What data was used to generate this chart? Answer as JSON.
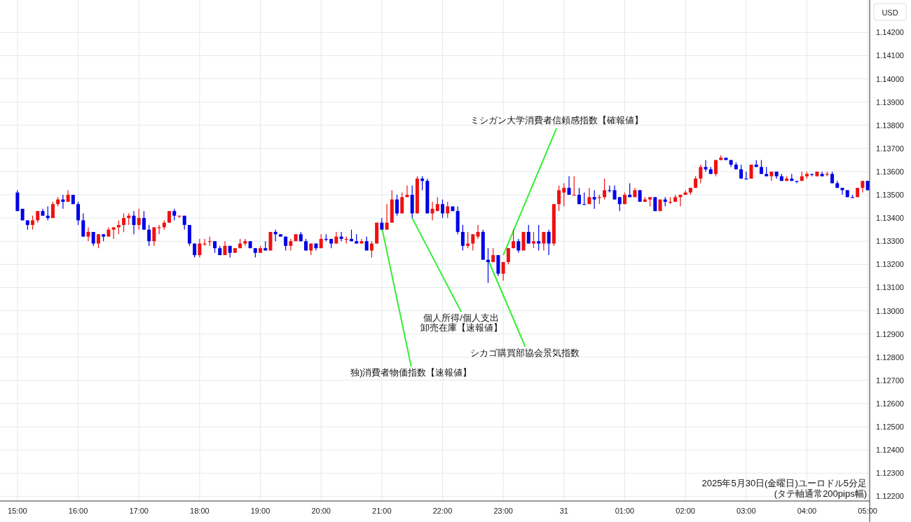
{
  "chart_data": {
    "type": "candlestick",
    "ylabel": "USD",
    "grid": true,
    "xlim": [
      "2025-05-30T14:58",
      "2025-05-31T05:02"
    ],
    "ylim": [
      1.1218,
      1.1434
    ],
    "xticks": [
      {
        "value": "2025-05-30T15:00",
        "label": "15:00"
      },
      {
        "value": "2025-05-30T16:00",
        "label": "16:00"
      },
      {
        "value": "2025-05-30T17:00",
        "label": "17:00"
      },
      {
        "value": "2025-05-30T18:00",
        "label": "18:00"
      },
      {
        "value": "2025-05-30T19:00",
        "label": "19:00"
      },
      {
        "value": "2025-05-30T20:00",
        "label": "20:00"
      },
      {
        "value": "2025-05-30T21:00",
        "label": "21:00"
      },
      {
        "value": "2025-05-30T22:00",
        "label": "22:00"
      },
      {
        "value": "2025-05-30T23:00",
        "label": "23:00"
      },
      {
        "value": "2025-05-31T00:00",
        "label": "31"
      },
      {
        "value": "2025-05-31T01:00",
        "label": "01:00"
      },
      {
        "value": "2025-05-31T02:00",
        "label": "02:00"
      },
      {
        "value": "2025-05-31T03:00",
        "label": "03:00"
      },
      {
        "value": "2025-05-31T04:00",
        "label": "04:00"
      },
      {
        "value": "2025-05-31T05:00",
        "label": "05:00"
      }
    ],
    "yticks": [
      {
        "value": 1.122,
        "label": "1.12200"
      },
      {
        "value": 1.123,
        "label": "1.12300"
      },
      {
        "value": 1.124,
        "label": "1.12400"
      },
      {
        "value": 1.125,
        "label": "1.12500"
      },
      {
        "value": 1.126,
        "label": "1.12600"
      },
      {
        "value": 1.127,
        "label": "1.12700"
      },
      {
        "value": 1.128,
        "label": "1.12800"
      },
      {
        "value": 1.129,
        "label": "1.12900"
      },
      {
        "value": 1.13,
        "label": "1.13000"
      },
      {
        "value": 1.131,
        "label": "1.13100"
      },
      {
        "value": 1.132,
        "label": "1.13200"
      },
      {
        "value": 1.133,
        "label": "1.13300"
      },
      {
        "value": 1.134,
        "label": "1.13400"
      },
      {
        "value": 1.135,
        "label": "1.13500"
      },
      {
        "value": 1.136,
        "label": "1.13600"
      },
      {
        "value": 1.137,
        "label": "1.13700"
      },
      {
        "value": 1.138,
        "label": "1.13800"
      },
      {
        "value": 1.139,
        "label": "1.13900"
      },
      {
        "value": 1.14,
        "label": "1.14000"
      },
      {
        "value": 1.141,
        "label": "1.14100"
      },
      {
        "value": 1.142,
        "label": "1.14200"
      }
    ],
    "annotations": [
      {
        "text": "独)消費者物価指数【速報値】",
        "x": "2025-05-30T21:00",
        "y": 1.1336
      },
      {
        "text": "個人所得/個人支出",
        "x": "2025-05-30T21:30",
        "y": 1.134
      },
      {
        "text": "卸売在庫【速報値】",
        "x": "2025-05-30T21:30",
        "y": 1.134
      },
      {
        "text": "シカゴ購買部協会景気指数",
        "x": "2025-05-30T22:45",
        "y": 1.1322
      },
      {
        "text": "ミシガン大学消費者信頼感指数【確報値】",
        "x": "2025-05-30T23:00",
        "y": 1.1324
      },
      "2025年5月30日(金曜日)ユーロドル5分足",
      "(タテ軸通常200pips幅)"
    ],
    "x": [
      "2025-05-30T15:00",
      "2025-05-30T15:05",
      "2025-05-30T15:10",
      "2025-05-30T15:15",
      "2025-05-30T15:20",
      "2025-05-30T15:25",
      "2025-05-30T15:30",
      "2025-05-30T15:35",
      "2025-05-30T15:40",
      "2025-05-30T15:45",
      "2025-05-30T15:50",
      "2025-05-30T15:55",
      "2025-05-30T16:00",
      "2025-05-30T16:05",
      "2025-05-30T16:10",
      "2025-05-30T16:15",
      "2025-05-30T16:20",
      "2025-05-30T16:25",
      "2025-05-30T16:30",
      "2025-05-30T16:35",
      "2025-05-30T16:40",
      "2025-05-30T16:45",
      "2025-05-30T16:50",
      "2025-05-30T16:55",
      "2025-05-30T17:00",
      "2025-05-30T17:05",
      "2025-05-30T17:10",
      "2025-05-30T17:15",
      "2025-05-30T17:20",
      "2025-05-30T17:25",
      "2025-05-30T17:30",
      "2025-05-30T17:35",
      "2025-05-30T17:40",
      "2025-05-30T17:45",
      "2025-05-30T17:50",
      "2025-05-30T17:55",
      "2025-05-30T18:00",
      "2025-05-30T18:05",
      "2025-05-30T18:10",
      "2025-05-30T18:15",
      "2025-05-30T18:20",
      "2025-05-30T18:25",
      "2025-05-30T18:30",
      "2025-05-30T18:35",
      "2025-05-30T18:40",
      "2025-05-30T18:45",
      "2025-05-30T18:50",
      "2025-05-30T18:55",
      "2025-05-30T19:00",
      "2025-05-30T19:05",
      "2025-05-30T19:10",
      "2025-05-30T19:15",
      "2025-05-30T19:20",
      "2025-05-30T19:25",
      "2025-05-30T19:30",
      "2025-05-30T19:35",
      "2025-05-30T19:40",
      "2025-05-30T19:45",
      "2025-05-30T19:50",
      "2025-05-30T19:55",
      "2025-05-30T20:00",
      "2025-05-30T20:05",
      "2025-05-30T20:10",
      "2025-05-30T20:15",
      "2025-05-30T20:20",
      "2025-05-30T20:25",
      "2025-05-30T20:30",
      "2025-05-30T20:35",
      "2025-05-30T20:40",
      "2025-05-30T20:45",
      "2025-05-30T20:50",
      "2025-05-30T20:55",
      "2025-05-30T21:00",
      "2025-05-30T21:05",
      "2025-05-30T21:10",
      "2025-05-30T21:15",
      "2025-05-30T21:20",
      "2025-05-30T21:25",
      "2025-05-30T21:30",
      "2025-05-30T21:35",
      "2025-05-30T21:40",
      "2025-05-30T21:45",
      "2025-05-30T21:50",
      "2025-05-30T21:55",
      "2025-05-30T22:00",
      "2025-05-30T22:05",
      "2025-05-30T22:10",
      "2025-05-30T22:15",
      "2025-05-30T22:20",
      "2025-05-30T22:25",
      "2025-05-30T22:30",
      "2025-05-30T22:35",
      "2025-05-30T22:40",
      "2025-05-30T22:45",
      "2025-05-30T22:50",
      "2025-05-30T22:55",
      "2025-05-30T23:00",
      "2025-05-30T23:05",
      "2025-05-30T23:10",
      "2025-05-30T23:15",
      "2025-05-30T23:20",
      "2025-05-30T23:25",
      "2025-05-30T23:30",
      "2025-05-30T23:35",
      "2025-05-30T23:40",
      "2025-05-30T23:45",
      "2025-05-30T23:50",
      "2025-05-30T23:55",
      "2025-05-31T00:00",
      "2025-05-31T00:05",
      "2025-05-31T00:10",
      "2025-05-31T00:15",
      "2025-05-31T00:20",
      "2025-05-31T00:25",
      "2025-05-31T00:30",
      "2025-05-31T00:35",
      "2025-05-31T00:40",
      "2025-05-31T00:45",
      "2025-05-31T00:50",
      "2025-05-31T00:55",
      "2025-05-31T01:00",
      "2025-05-31T01:05",
      "2025-05-31T01:10",
      "2025-05-31T01:15",
      "2025-05-31T01:20",
      "2025-05-31T01:25",
      "2025-05-31T01:30",
      "2025-05-31T01:35",
      "2025-05-31T01:40",
      "2025-05-31T01:45",
      "2025-05-31T01:50",
      "2025-05-31T01:55",
      "2025-05-31T02:00",
      "2025-05-31T02:05",
      "2025-05-31T02:10",
      "2025-05-31T02:15",
      "2025-05-31T02:20",
      "2025-05-31T02:25",
      "2025-05-31T02:30",
      "2025-05-31T02:35",
      "2025-05-31T02:40",
      "2025-05-31T02:45",
      "2025-05-31T02:50",
      "2025-05-31T02:55",
      "2025-05-31T03:00",
      "2025-05-31T03:05",
      "2025-05-31T03:10",
      "2025-05-31T03:15",
      "2025-05-31T03:20",
      "2025-05-31T03:25",
      "2025-05-31T03:30",
      "2025-05-31T03:35",
      "2025-05-31T03:40",
      "2025-05-31T03:45",
      "2025-05-31T03:50",
      "2025-05-31T03:55",
      "2025-05-31T04:00",
      "2025-05-31T04:05",
      "2025-05-31T04:10",
      "2025-05-31T04:15",
      "2025-05-31T04:20",
      "2025-05-31T04:25",
      "2025-05-31T04:30",
      "2025-05-31T04:35",
      "2025-05-31T04:40",
      "2025-05-31T04:45",
      "2025-05-31T04:50",
      "2025-05-31T04:55",
      "2025-05-31T05:00"
    ],
    "ohlc": [
      [
        1.1351,
        1.1352,
        1.1343,
        1.1343
      ],
      [
        1.1344,
        1.1344,
        1.1339,
        1.1339
      ],
      [
        1.1339,
        1.1339,
        1.1335,
        1.1337
      ],
      [
        1.1337,
        1.1341,
        1.1335,
        1.1339
      ],
      [
        1.1339,
        1.1343,
        1.1338,
        1.1343
      ],
      [
        1.1343,
        1.1344,
        1.1341,
        1.1341
      ],
      [
        1.1341,
        1.1345,
        1.1339,
        1.134
      ],
      [
        1.134,
        1.1347,
        1.134,
        1.1346
      ],
      [
        1.1346,
        1.1349,
        1.1345,
        1.1348
      ],
      [
        1.1348,
        1.135,
        1.1344,
        1.1347
      ],
      [
        1.1347,
        1.1352,
        1.1347,
        1.135
      ],
      [
        1.135,
        1.135,
        1.1346,
        1.1346
      ],
      [
        1.1346,
        1.1347,
        1.1337,
        1.1339
      ],
      [
        1.1339,
        1.1342,
        1.1332,
        1.1332
      ],
      [
        1.1332,
        1.1336,
        1.133,
        1.1334
      ],
      [
        1.1334,
        1.1334,
        1.1328,
        1.1329
      ],
      [
        1.1329,
        1.1333,
        1.1327,
        1.1333
      ],
      [
        1.1333,
        1.1333,
        1.133,
        1.1332
      ],
      [
        1.1332,
        1.1336,
        1.1332,
        1.1335
      ],
      [
        1.1335,
        1.1336,
        1.1331,
        1.1336
      ],
      [
        1.1336,
        1.1339,
        1.1333,
        1.1337
      ],
      [
        1.1337,
        1.1342,
        1.1334,
        1.134
      ],
      [
        1.134,
        1.1342,
        1.1337,
        1.1341
      ],
      [
        1.1341,
        1.1343,
        1.1333,
        1.1337
      ],
      [
        1.1337,
        1.1344,
        1.1335,
        1.134
      ],
      [
        1.134,
        1.1343,
        1.1335,
        1.1335
      ],
      [
        1.1335,
        1.1337,
        1.1328,
        1.133
      ],
      [
        1.133,
        1.1336,
        1.1328,
        1.1336
      ],
      [
        1.1336,
        1.1337,
        1.1333,
        1.1336
      ],
      [
        1.1336,
        1.1339,
        1.1335,
        1.1338
      ],
      [
        1.1338,
        1.1343,
        1.1338,
        1.1343
      ],
      [
        1.1343,
        1.1344,
        1.1339,
        1.1341
      ],
      [
        1.1341,
        1.1341,
        1.134,
        1.1341
      ],
      [
        1.1341,
        1.1341,
        1.1335,
        1.1337
      ],
      [
        1.1337,
        1.1337,
        1.1328,
        1.1329
      ],
      [
        1.1329,
        1.1329,
        1.1323,
        1.1324
      ],
      [
        1.1324,
        1.1331,
        1.1323,
        1.1329
      ],
      [
        1.1329,
        1.1331,
        1.1328,
        1.1329
      ],
      [
        1.133,
        1.1332,
        1.1328,
        1.133
      ],
      [
        1.133,
        1.133,
        1.1325,
        1.1327
      ],
      [
        1.1327,
        1.1328,
        1.1324,
        1.1324
      ],
      [
        1.1324,
        1.133,
        1.1324,
        1.1328
      ],
      [
        1.1328,
        1.1328,
        1.1323,
        1.1325
      ],
      [
        1.1325,
        1.1327,
        1.1325,
        1.1327
      ],
      [
        1.1327,
        1.1331,
        1.1327,
        1.1329
      ],
      [
        1.1329,
        1.1331,
        1.1328,
        1.133
      ],
      [
        1.133,
        1.133,
        1.1327,
        1.1327
      ],
      [
        1.1327,
        1.1327,
        1.1323,
        1.1325
      ],
      [
        1.1325,
        1.1328,
        1.1325,
        1.1327
      ],
      [
        1.1327,
        1.133,
        1.1326,
        1.1326
      ],
      [
        1.1326,
        1.1334,
        1.1326,
        1.1334
      ],
      [
        1.1334,
        1.1335,
        1.133,
        1.1333
      ],
      [
        1.1333,
        1.1333,
        1.1332,
        1.1332
      ],
      [
        1.1332,
        1.1332,
        1.1326,
        1.1328
      ],
      [
        1.1328,
        1.1331,
        1.1326,
        1.133
      ],
      [
        1.133,
        1.1333,
        1.133,
        1.1333
      ],
      [
        1.1333,
        1.1334,
        1.133,
        1.133
      ],
      [
        1.133,
        1.1331,
        1.1326,
        1.1326
      ],
      [
        1.1326,
        1.1329,
        1.1324,
        1.1329
      ],
      [
        1.1329,
        1.1329,
        1.1326,
        1.1327
      ],
      [
        1.1327,
        1.1333,
        1.1327,
        1.1331
      ],
      [
        1.1331,
        1.1333,
        1.133,
        1.1331
      ],
      [
        1.1331,
        1.1331,
        1.1327,
        1.1329
      ],
      [
        1.1329,
        1.1334,
        1.1329,
        1.1332
      ],
      [
        1.1332,
        1.1334,
        1.133,
        1.1331
      ],
      [
        1.1331,
        1.1332,
        1.1329,
        1.1331
      ],
      [
        1.1331,
        1.1335,
        1.133,
        1.133
      ],
      [
        1.133,
        1.1333,
        1.1329,
        1.1329
      ],
      [
        1.1329,
        1.1331,
        1.1329,
        1.133
      ],
      [
        1.133,
        1.1332,
        1.1326,
        1.1326
      ],
      [
        1.1326,
        1.133,
        1.1323,
        1.1329
      ],
      [
        1.1329,
        1.1338,
        1.1329,
        1.1338
      ],
      [
        1.1338,
        1.134,
        1.1335,
        1.1335
      ],
      [
        1.1335,
        1.1346,
        1.1335,
        1.1338
      ],
      [
        1.1338,
        1.1352,
        1.1338,
        1.1348
      ],
      [
        1.1348,
        1.135,
        1.1341,
        1.1342
      ],
      [
        1.1342,
        1.1351,
        1.1342,
        1.1349
      ],
      [
        1.1349,
        1.1354,
        1.1349,
        1.135
      ],
      [
        1.135,
        1.1354,
        1.134,
        1.1342
      ],
      [
        1.1342,
        1.1358,
        1.1342,
        1.1357
      ],
      [
        1.1357,
        1.1358,
        1.1352,
        1.1356
      ],
      [
        1.1356,
        1.1357,
        1.1342,
        1.1342
      ],
      [
        1.1342,
        1.1347,
        1.1339,
        1.1344
      ],
      [
        1.1343,
        1.1349,
        1.1343,
        1.1346
      ],
      [
        1.1346,
        1.1348,
        1.134,
        1.1342
      ],
      [
        1.1342,
        1.1347,
        1.134,
        1.1345
      ],
      [
        1.1345,
        1.1345,
        1.1343,
        1.1343
      ],
      [
        1.1343,
        1.1345,
        1.1333,
        1.1334
      ],
      [
        1.1334,
        1.1337,
        1.1326,
        1.1328
      ],
      [
        1.1328,
        1.1334,
        1.1327,
        1.1329
      ],
      [
        1.1329,
        1.1333,
        1.1326,
        1.1333
      ],
      [
        1.1332,
        1.1337,
        1.1331,
        1.1334
      ],
      [
        1.1334,
        1.1335,
        1.1322,
        1.1322
      ],
      [
        1.1322,
        1.1327,
        1.1312,
        1.1321
      ],
      [
        1.1321,
        1.1327,
        1.1321,
        1.1324
      ],
      [
        1.1324,
        1.1324,
        1.1315,
        1.1316
      ],
      [
        1.1316,
        1.1321,
        1.1313,
        1.1321
      ],
      [
        1.1321,
        1.1327,
        1.132,
        1.1327
      ],
      [
        1.1327,
        1.1335,
        1.1327,
        1.133
      ],
      [
        1.133,
        1.1331,
        1.1325,
        1.1326
      ],
      [
        1.1326,
        1.1334,
        1.1326,
        1.1334
      ],
      [
        1.1334,
        1.1337,
        1.1329,
        1.1329
      ],
      [
        1.1329,
        1.1334,
        1.1327,
        1.133
      ],
      [
        1.133,
        1.1337,
        1.1326,
        1.1329
      ],
      [
        1.1329,
        1.1334,
        1.1326,
        1.1334
      ],
      [
        1.1334,
        1.1335,
        1.1324,
        1.1329
      ],
      [
        1.1329,
        1.1346,
        1.1328,
        1.1346
      ],
      [
        1.1346,
        1.1354,
        1.1343,
        1.1352
      ],
      [
        1.1351,
        1.1355,
        1.1345,
        1.1353
      ],
      [
        1.1353,
        1.1358,
        1.135,
        1.135
      ],
      [
        1.135,
        1.1358,
        1.135,
        1.135
      ],
      [
        1.135,
        1.1353,
        1.1346,
        1.1346
      ],
      [
        1.1346,
        1.1351,
        1.1346,
        1.1346
      ],
      [
        1.1346,
        1.1353,
        1.1346,
        1.1349
      ],
      [
        1.1349,
        1.1352,
        1.1344,
        1.1348
      ],
      [
        1.1349,
        1.135,
        1.1346,
        1.1349
      ],
      [
        1.1349,
        1.1357,
        1.1348,
        1.1352
      ],
      [
        1.1352,
        1.1354,
        1.1351,
        1.1352
      ],
      [
        1.1352,
        1.1354,
        1.1348,
        1.1348
      ],
      [
        1.1349,
        1.1349,
        1.1343,
        1.1346
      ],
      [
        1.1346,
        1.1351,
        1.1346,
        1.135
      ],
      [
        1.135,
        1.1355,
        1.1349,
        1.1349
      ],
      [
        1.1349,
        1.1353,
        1.1349,
        1.1352
      ],
      [
        1.1352,
        1.1352,
        1.1347,
        1.1347
      ],
      [
        1.1347,
        1.1349,
        1.1347,
        1.1348
      ],
      [
        1.1348,
        1.1349,
        1.1345,
        1.1349
      ],
      [
        1.1349,
        1.1349,
        1.1343,
        1.1343
      ],
      [
        1.1343,
        1.1348,
        1.1343,
        1.1348
      ],
      [
        1.1348,
        1.1349,
        1.1345,
        1.1347
      ],
      [
        1.1347,
        1.1349,
        1.1346,
        1.1347
      ],
      [
        1.1347,
        1.135,
        1.1347,
        1.1349
      ],
      [
        1.1349,
        1.135,
        1.1345,
        1.135
      ],
      [
        1.135,
        1.1352,
        1.135,
        1.1351
      ],
      [
        1.1351,
        1.1353,
        1.135,
        1.1353
      ],
      [
        1.1353,
        1.1358,
        1.1353,
        1.1357
      ],
      [
        1.1357,
        1.1363,
        1.1355,
        1.1362
      ],
      [
        1.1362,
        1.1365,
        1.136,
        1.1361
      ],
      [
        1.1361,
        1.1362,
        1.1359,
        1.1359
      ],
      [
        1.1359,
        1.1365,
        1.1358,
        1.1365
      ],
      [
        1.1365,
        1.1367,
        1.1365,
        1.1366
      ],
      [
        1.1366,
        1.1366,
        1.1365,
        1.1365
      ],
      [
        1.1365,
        1.1365,
        1.1362,
        1.1363
      ],
      [
        1.1363,
        1.1364,
        1.1361,
        1.1361
      ],
      [
        1.1361,
        1.1363,
        1.1357,
        1.1357
      ],
      [
        1.1357,
        1.136,
        1.1357,
        1.1357
      ],
      [
        1.1357,
        1.1363,
        1.1357,
        1.1363
      ],
      [
        1.1363,
        1.1365,
        1.1362,
        1.1362
      ],
      [
        1.1362,
        1.1365,
        1.1359,
        1.1359
      ],
      [
        1.1359,
        1.1362,
        1.1358,
        1.1358
      ],
      [
        1.1358,
        1.136,
        1.1356,
        1.136
      ],
      [
        1.136,
        1.136,
        1.1357,
        1.1358
      ],
      [
        1.1358,
        1.1359,
        1.1356,
        1.1356
      ],
      [
        1.1356,
        1.1358,
        1.1356,
        1.1357
      ],
      [
        1.1357,
        1.1359,
        1.1356,
        1.1356
      ],
      [
        1.1356,
        1.1356,
        1.1355,
        1.1356
      ],
      [
        1.1356,
        1.136,
        1.1356,
        1.1358
      ],
      [
        1.1358,
        1.136,
        1.1357,
        1.1359
      ],
      [
        1.1359,
        1.1359,
        1.1358,
        1.1359
      ],
      [
        1.1358,
        1.136,
        1.1358,
        1.136
      ],
      [
        1.1359,
        1.136,
        1.1358,
        1.1358
      ],
      [
        1.1359,
        1.136,
        1.1358,
        1.1359
      ],
      [
        1.1359,
        1.136,
        1.1355,
        1.1355
      ],
      [
        1.1355,
        1.1356,
        1.1353,
        1.1353
      ],
      [
        1.1353,
        1.1353,
        1.135,
        1.1352
      ],
      [
        1.1352,
        1.1352,
        1.1349,
        1.1349
      ],
      [
        1.1349,
        1.135,
        1.1349,
        1.1349
      ],
      [
        1.1349,
        1.1353,
        1.1349,
        1.1353
      ],
      [
        1.1353,
        1.1356,
        1.1351,
        1.1356
      ],
      [
        1.1356,
        1.1356,
        1.1352,
        1.1352
      ]
    ],
    "colors": [
      "#0000e6",
      "#0000e6",
      "#0000e6",
      "#ee1111",
      "#ee1111",
      "#0000e6",
      "#0000e6",
      "#ee1111",
      "#ee1111",
      "#0000e6",
      "#ee1111",
      "#0000e6",
      "#0000e6",
      "#0000e6",
      "#ee1111",
      "#0000e6",
      "#ee1111",
      "#0000e6",
      "#ee1111",
      "#ee1111",
      "#ee1111",
      "#ee1111",
      "#ee1111",
      "#0000e6",
      "#ee1111",
      "#0000e6",
      "#0000e6",
      "#ee1111",
      "#ee1111",
      "#ee1111",
      "#ee1111",
      "#0000e6",
      "#ee1111",
      "#0000e6",
      "#0000e6",
      "#0000e6",
      "#ee1111",
      "#ee1111",
      "#ee1111",
      "#0000e6",
      "#0000e6",
      "#ee1111",
      "#0000e6",
      "#ee1111",
      "#ee1111",
      "#ee1111",
      "#0000e6",
      "#0000e6",
      "#ee1111",
      "#0000e6",
      "#ee1111",
      "#0000e6",
      "#0000e6",
      "#0000e6",
      "#ee1111",
      "#ee1111",
      "#0000e6",
      "#0000e6",
      "#ee1111",
      "#0000e6",
      "#ee1111",
      "#0000e6",
      "#0000e6",
      "#ee1111",
      "#0000e6",
      "#ee1111",
      "#0000e6",
      "#0000e6",
      "#ee1111",
      "#0000e6",
      "#ee1111",
      "#ee1111",
      "#0000e6",
      "#ee1111",
      "#ee1111",
      "#0000e6",
      "#ee1111",
      "#ee1111",
      "#0000e6",
      "#ee1111",
      "#0000e6",
      "#0000e6",
      "#ee1111",
      "#ee1111",
      "#0000e6",
      "#ee1111",
      "#0000e6",
      "#0000e6",
      "#0000e6",
      "#ee1111",
      "#ee1111",
      "#ee1111",
      "#0000e6",
      "#0000e6",
      "#ee1111",
      "#0000e6",
      "#ee1111",
      "#ee1111",
      "#ee1111",
      "#0000e6",
      "#ee1111",
      "#0000e6",
      "#ee1111",
      "#0000e6",
      "#ee1111",
      "#0000e6",
      "#ee1111",
      "#ee1111",
      "#ee1111",
      "#0000e6",
      "#ee1111",
      "#0000e6",
      "#0000e6",
      "#ee1111",
      "#0000e6",
      "#ee1111",
      "#ee1111",
      "#0000e6",
      "#0000e6",
      "#0000e6",
      "#ee1111",
      "#0000e6",
      "#ee1111",
      "#0000e6",
      "#ee1111",
      "#ee1111",
      "#0000e6",
      "#ee1111",
      "#0000e6",
      "#ee1111",
      "#ee1111",
      "#ee1111",
      "#ee1111",
      "#ee1111",
      "#ee1111",
      "#ee1111",
      "#0000e6",
      "#0000e6",
      "#ee1111",
      "#ee1111",
      "#0000e6",
      "#0000e6",
      "#0000e6",
      "#0000e6",
      "#0000e6",
      "#ee1111",
      "#0000e6",
      "#0000e6",
      "#0000e6",
      "#ee1111",
      "#0000e6",
      "#0000e6",
      "#ee1111",
      "#0000e6",
      "#0000e6",
      "#ee1111",
      "#ee1111",
      "#0000e6",
      "#ee1111",
      "#0000e6",
      "#ee1111",
      "#0000e6",
      "#0000e6",
      "#0000e6",
      "#0000e6",
      "#0000e6",
      "#ee1111",
      "#ee1111",
      "#0000e6"
    ]
  }
}
